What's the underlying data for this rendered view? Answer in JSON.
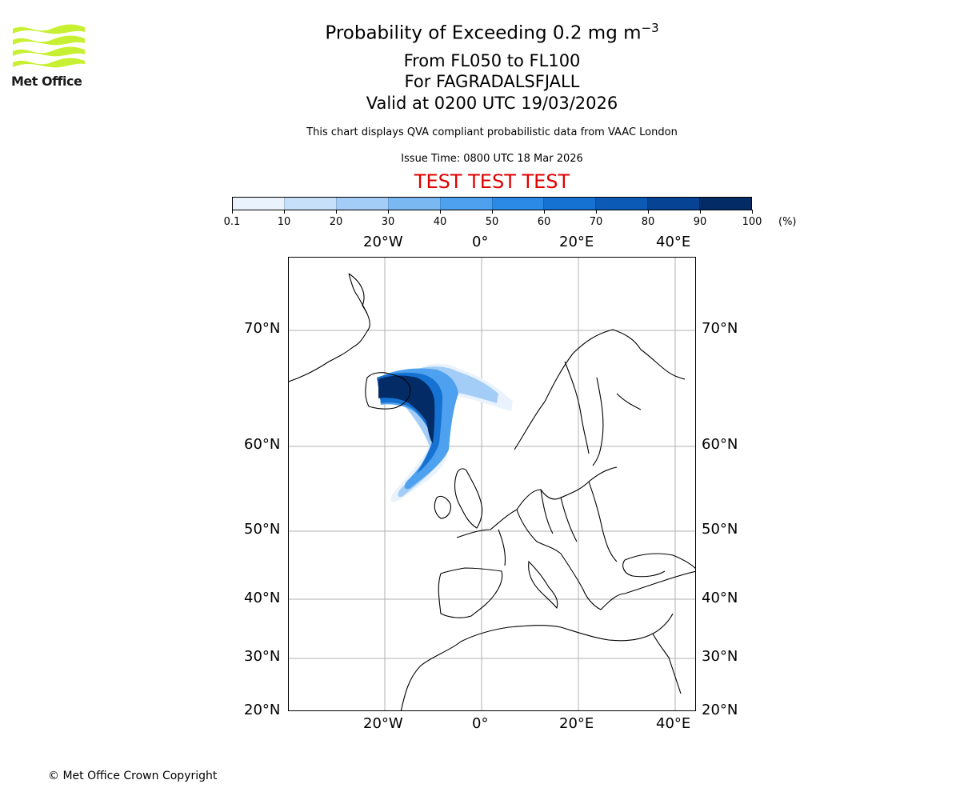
{
  "logo": {
    "text": "Met Office",
    "color": "#c8f032"
  },
  "title": {
    "line1": "Probability of Exceeding 0.2 mg m",
    "line1_sup": "−3",
    "line2": "From FL050 to FL100",
    "line3": "For FAGRADALSFJALL",
    "line4": "Valid at 0200 UTC 19/03/2026"
  },
  "subtitle": "This chart displays QVA compliant probabilistic data from VAAC London",
  "issue_time": "Issue Time: 0800 UTC 18 Mar 2026",
  "test_banner": "TEST TEST TEST",
  "colorbar": {
    "ticks": [
      "0.1",
      "10",
      "20",
      "30",
      "40",
      "50",
      "60",
      "70",
      "80",
      "90",
      "100"
    ],
    "unit": "(%)",
    "colors": [
      "#eaf3fd",
      "#c6e0fa",
      "#a3cdf6",
      "#7ab8f2",
      "#4ea1ee",
      "#2a8ae6",
      "#1572d2",
      "#0a5ab6",
      "#074395",
      "#032c66"
    ]
  },
  "map": {
    "lon_labels": [
      "20°W",
      "0°",
      "20°E",
      "40°E"
    ],
    "lat_labels": [
      "70°N",
      "60°N",
      "50°N",
      "40°N",
      "30°N",
      "20°N"
    ]
  },
  "copyright": "© Met Office Crown Copyright"
}
